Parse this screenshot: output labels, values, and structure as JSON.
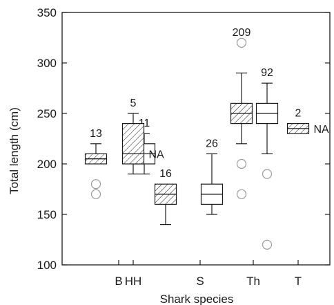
{
  "chart_data": {
    "type": "boxplot",
    "xlabel": "Shark species",
    "ylabel": "Total length (cm)",
    "ylim": [
      100,
      350
    ],
    "yticks": [
      100,
      150,
      200,
      250,
      300,
      350
    ],
    "grid": false,
    "legend": "none",
    "colors": {
      "axis": "#1a1a1a",
      "box_fill": "#ffffff",
      "hatch": "#1a1a1a",
      "outlier": "#9a9a9a"
    },
    "categories": [
      "B",
      "HH",
      "S",
      "Th",
      "T"
    ],
    "boxes": [
      {
        "category": "B",
        "hatched": true,
        "label": "13",
        "min": 200,
        "q1": 200,
        "median": 205,
        "q3": 210,
        "max": 220,
        "outliers": [
          180,
          170
        ],
        "side_label": ""
      },
      {
        "category": "B",
        "hatched": false,
        "label": "11",
        "min": 190,
        "q1": 200,
        "median": 210,
        "q3": 220,
        "max": 230,
        "outliers": [],
        "side_label": ""
      },
      {
        "category": "HH",
        "hatched": true,
        "label": "5",
        "min": 190,
        "q1": 200,
        "median": 210,
        "q3": 240,
        "max": 250,
        "outliers": [],
        "side_label": "NA"
      },
      {
        "category": "S",
        "hatched": true,
        "label": "16",
        "min": 140,
        "q1": 160,
        "median": 170,
        "q3": 180,
        "max": 180,
        "outliers": [],
        "side_label": ""
      },
      {
        "category": "S",
        "hatched": false,
        "label": "26",
        "min": 150,
        "q1": 160,
        "median": 170,
        "q3": 180,
        "max": 210,
        "outliers": [],
        "side_label": ""
      },
      {
        "category": "Th",
        "hatched": true,
        "label": "209",
        "min": 220,
        "q1": 240,
        "median": 250,
        "q3": 260,
        "max": 290,
        "outliers": [
          320,
          200,
          170
        ],
        "side_label": ""
      },
      {
        "category": "Th",
        "hatched": false,
        "label": "92",
        "min": 210,
        "q1": 240,
        "median": 250,
        "q3": 260,
        "max": 280,
        "outliers": [
          190,
          120
        ],
        "side_label": ""
      },
      {
        "category": "T",
        "hatched": true,
        "label": "2",
        "min": 230,
        "q1": 230,
        "median": 235,
        "q3": 240,
        "max": 240,
        "outliers": [],
        "side_label": "NA"
      }
    ]
  }
}
